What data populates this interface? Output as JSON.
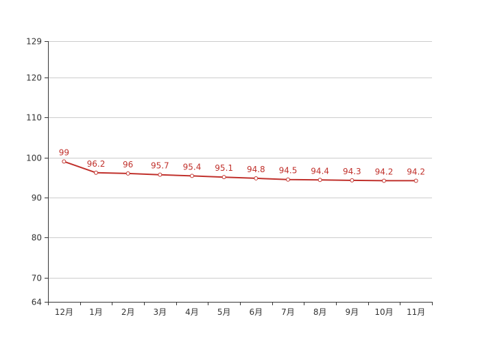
{
  "chart_data": {
    "type": "line",
    "categories": [
      "12月",
      "1月",
      "2月",
      "3月",
      "4月",
      "5月",
      "6月",
      "7月",
      "8月",
      "9月",
      "10月",
      "11月"
    ],
    "series": [
      {
        "values": [
          99,
          96.2,
          96,
          95.7,
          95.4,
          95.1,
          94.8,
          94.5,
          94.4,
          94.3,
          94.2,
          94.2
        ]
      }
    ],
    "data_labels": [
      "99",
      "96.2",
      "96",
      "95.7",
      "95.4",
      "95.1",
      "94.8",
      "94.5",
      "94.4",
      "94.3",
      "94.2",
      "94.2"
    ],
    "y_ticks": [
      64,
      70,
      80,
      90,
      100,
      110,
      120,
      129
    ],
    "y_tick_labels": [
      "64",
      "70",
      "80",
      "90",
      "100",
      "110",
      "120",
      "129"
    ],
    "ylim": [
      64,
      129
    ],
    "grid": true,
    "colors": {
      "line": "#c0302b",
      "marker_fill": "#ffffff",
      "data_label": "#c0302b",
      "grid": "#cccccc",
      "axis": "#333333"
    }
  }
}
